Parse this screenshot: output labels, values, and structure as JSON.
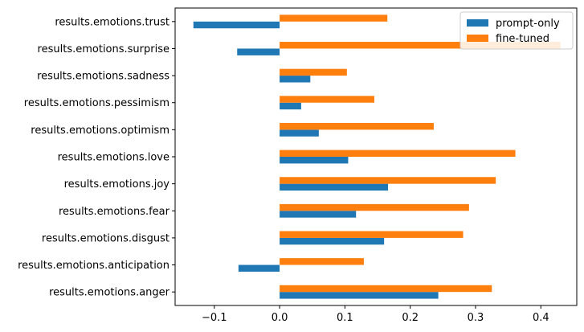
{
  "chart_data": {
    "type": "bar",
    "orientation": "horizontal",
    "categories": [
      "results.emotions.anger",
      "results.emotions.anticipation",
      "results.emotions.disgust",
      "results.emotions.fear",
      "results.emotions.joy",
      "results.emotions.love",
      "results.emotions.optimism",
      "results.emotions.pessimism",
      "results.emotions.sadness",
      "results.emotions.surprise",
      "results.emotions.trust"
    ],
    "series": [
      {
        "name": "prompt-only",
        "color": "#1f77b4",
        "values": [
          0.243,
          -0.063,
          0.16,
          0.117,
          0.166,
          0.105,
          0.06,
          0.033,
          0.047,
          -0.065,
          -0.132
        ]
      },
      {
        "name": "fine-tuned",
        "color": "#ff7f0e",
        "values": [
          0.325,
          0.129,
          0.281,
          0.29,
          0.331,
          0.361,
          0.236,
          0.145,
          0.103,
          0.43,
          0.165
        ]
      }
    ],
    "xlim": [
      -0.16,
      0.455
    ],
    "xticks": [
      -0.1,
      0.0,
      0.1,
      0.2,
      0.3,
      0.4
    ],
    "xtick_labels": [
      "−0.1",
      "0.0",
      "0.1",
      "0.2",
      "0.3",
      "0.4"
    ],
    "title": "",
    "xlabel": "",
    "ylabel": "",
    "grid": false,
    "legend": "top-right"
  }
}
